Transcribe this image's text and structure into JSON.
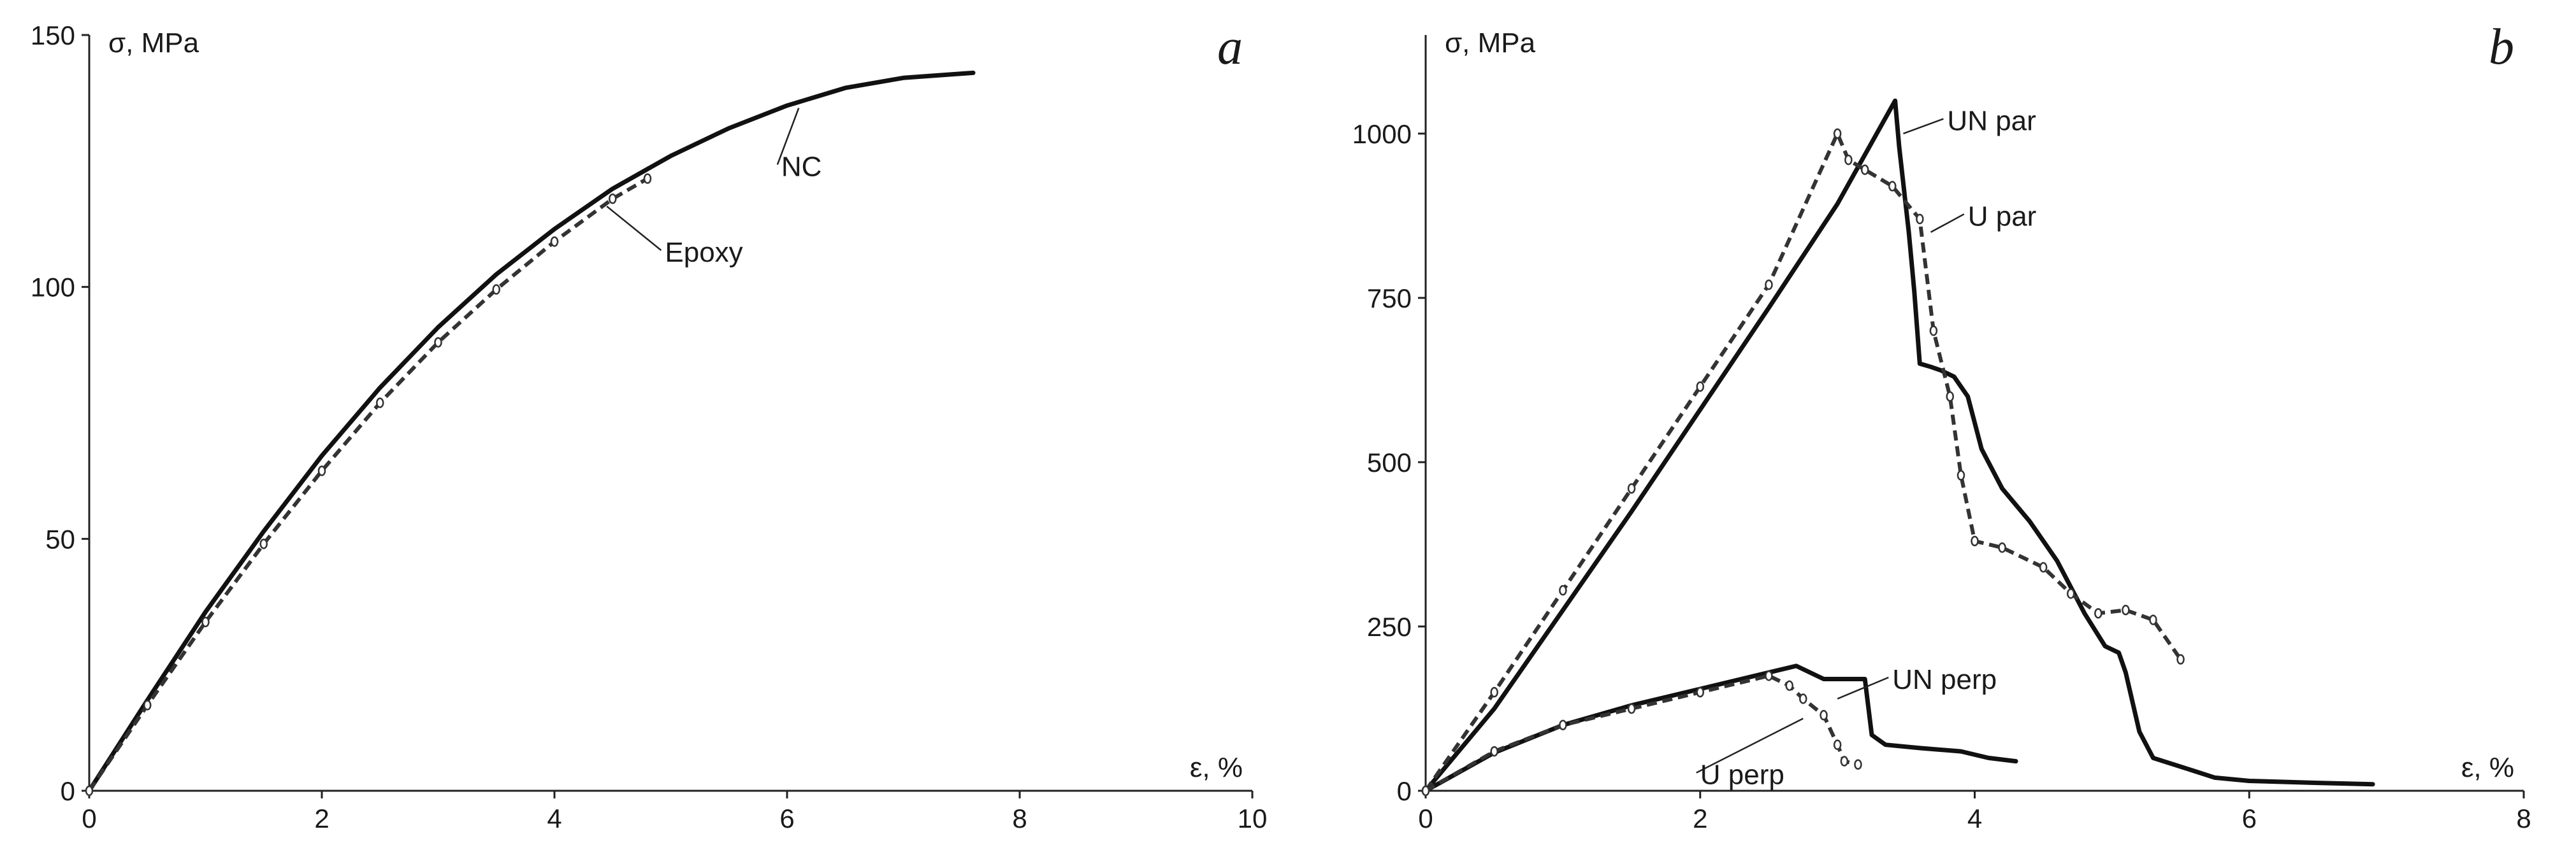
{
  "chart_data": [
    {
      "type": "line",
      "panel_label": "a",
      "xlabel": "ε, %",
      "ylabel": "σ, MPa",
      "xlim": [
        0,
        10
      ],
      "ylim": [
        0,
        150
      ],
      "xticks": [
        0,
        2,
        4,
        6,
        8,
        10
      ],
      "yticks": [
        0,
        50,
        100,
        150
      ],
      "grid": false,
      "series": [
        {
          "name": "NC",
          "style": "solid",
          "x": [
            0,
            0.5,
            1,
            1.5,
            2,
            2.5,
            3,
            3.5,
            4,
            4.5,
            5,
            5.5,
            6,
            6.5,
            7,
            7.6
          ],
          "y": [
            0,
            18,
            35.5,
            51.5,
            66.5,
            80,
            92,
            102.5,
            111.5,
            119.5,
            126,
            131.5,
            136,
            139.5,
            141.5,
            142.5
          ]
        },
        {
          "name": "Epoxy",
          "style": "dashed-markers",
          "x": [
            0,
            0.5,
            1,
            1.5,
            2,
            2.5,
            3,
            3.5,
            4,
            4.5,
            4.8
          ],
          "y": [
            0,
            17,
            33.5,
            49,
            63.5,
            77,
            89,
            99.5,
            109,
            117.5,
            121.5
          ]
        }
      ],
      "annotations": [
        {
          "text": "NC",
          "x": 5.95,
          "y": 122,
          "target_x": 6.1,
          "target_y": 135.5
        },
        {
          "text": "Epoxy",
          "x": 4.95,
          "y": 105,
          "target_x": 4.45,
          "target_y": 116
        }
      ]
    },
    {
      "type": "line",
      "panel_label": "b",
      "xlabel": "ε, %",
      "ylabel": "σ, MPa",
      "xlim": [
        0,
        8
      ],
      "ylim": [
        0,
        1150
      ],
      "xticks": [
        0,
        2,
        4,
        6,
        8
      ],
      "yticks": [
        0,
        250,
        500,
        750,
        1000
      ],
      "grid": false,
      "series": [
        {
          "name": "UN par",
          "style": "solid",
          "x": [
            0,
            0.5,
            1,
            1.5,
            2,
            2.5,
            3,
            3.42,
            3.45,
            3.52,
            3.56,
            3.6,
            3.68,
            3.75,
            3.85,
            3.95,
            4.05,
            4.2,
            4.4,
            4.6,
            4.8,
            4.95,
            5.05,
            5.1,
            5.2,
            5.3,
            5.6,
            5.75,
            6.0,
            6.5,
            6.9
          ],
          "y": [
            0,
            125,
            275,
            425,
            580,
            735,
            893,
            1050,
            980,
            850,
            760,
            650,
            645,
            640,
            630,
            600,
            520,
            460,
            410,
            350,
            270,
            220,
            210,
            180,
            90,
            50,
            30,
            20,
            15,
            12,
            10
          ]
        },
        {
          "name": "U par",
          "style": "dashed-markers",
          "x": [
            0,
            0.5,
            1,
            1.5,
            2,
            2.5,
            3,
            3.08,
            3.2,
            3.4,
            3.6,
            3.7,
            3.82,
            3.9,
            4.0,
            4.2,
            4.5,
            4.7,
            4.9,
            5.1,
            5.3,
            5.5
          ],
          "y": [
            0,
            150,
            305,
            460,
            615,
            770,
            1000,
            960,
            945,
            920,
            870,
            700,
            600,
            480,
            380,
            370,
            340,
            300,
            270,
            275,
            260,
            200
          ]
        },
        {
          "name": "UN perp",
          "style": "solid",
          "x": [
            0,
            0.5,
            1,
            1.5,
            2,
            2.5,
            2.7,
            2.9,
            3.2,
            3.25,
            3.35,
            3.6,
            3.9,
            4.1,
            4.3
          ],
          "y": [
            0,
            58,
            100,
            130,
            155,
            180,
            190,
            170,
            170,
            85,
            70,
            65,
            60,
            50,
            45
          ]
        },
        {
          "name": "U perp",
          "style": "dashed-markers",
          "x": [
            0,
            0.5,
            1,
            1.5,
            2,
            2.5,
            2.65,
            2.75,
            2.9,
            3.0,
            3.05,
            3.15
          ],
          "y": [
            0,
            60,
            100,
            125,
            150,
            175,
            160,
            140,
            115,
            70,
            45,
            40
          ]
        }
      ],
      "annotations": [
        {
          "text": "UN par",
          "x": 3.8,
          "y": 1005,
          "target_x": 3.48,
          "target_y": 1000
        },
        {
          "text": "U par",
          "x": 3.95,
          "y": 860,
          "target_x": 3.68,
          "target_y": 850
        },
        {
          "text": "UN perp",
          "x": 3.4,
          "y": 155,
          "target_x": 3.0,
          "target_y": 140
        },
        {
          "text": "U perp",
          "x": 2.0,
          "y": 10,
          "target_x": 2.75,
          "target_y": 110
        }
      ]
    }
  ]
}
